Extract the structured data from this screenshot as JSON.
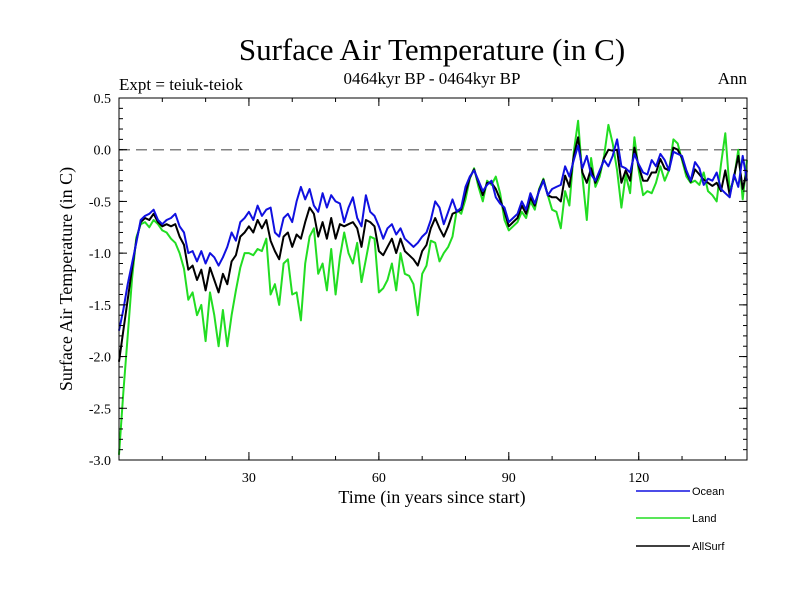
{
  "chart_data": {
    "type": "line",
    "title": "Surface Air Temperature (in C)",
    "subtitle": "0464kyr BP - 0464kyr BP",
    "left_label": "Expt = teiuk-teiok",
    "right_label": "Ann",
    "xlabel": "Time (in years since start)",
    "ylabel": "Surface Air Temperature (in C)",
    "xlim": [
      0,
      145
    ],
    "ylim": [
      -3.0,
      0.5
    ],
    "xticks": [
      30,
      60,
      90,
      120
    ],
    "yticks": [
      0.5,
      0.0,
      -0.5,
      -1.0,
      -1.5,
      -2.0,
      -2.5,
      -3.0
    ],
    "ytick_labels": [
      "0.5",
      "0.0",
      "-0.5",
      "-1.0",
      "-1.5",
      "-2.0",
      "-2.5",
      "-3.0"
    ],
    "reference_line": 0.0,
    "legend_position": "bottom-right",
    "x": [
      0,
      1,
      2,
      3,
      4,
      5,
      6,
      7,
      8,
      9,
      10,
      11,
      12,
      13,
      14,
      15,
      16,
      17,
      18,
      19,
      20,
      21,
      22,
      23,
      24,
      25,
      26,
      27,
      28,
      29,
      30,
      31,
      32,
      33,
      34,
      35,
      36,
      37,
      38,
      39,
      40,
      41,
      42,
      43,
      44,
      45,
      46,
      47,
      48,
      49,
      50,
      51,
      52,
      53,
      54,
      55,
      56,
      57,
      58,
      59,
      60,
      61,
      62,
      63,
      64,
      65,
      66,
      67,
      68,
      69,
      70,
      71,
      72,
      73,
      74,
      75,
      76,
      77,
      78,
      79,
      80,
      81,
      82,
      83,
      84,
      85,
      86,
      87,
      88,
      89,
      90,
      91,
      92,
      93,
      94,
      95,
      96,
      97,
      98,
      99,
      100,
      101,
      102,
      103,
      104,
      105,
      106,
      107,
      108,
      109,
      110,
      111,
      112,
      113,
      114,
      115,
      116,
      117,
      118,
      119,
      120,
      121,
      122,
      123,
      124,
      125,
      126,
      127,
      128,
      129,
      130,
      131,
      132,
      133,
      134,
      135,
      136,
      137,
      138,
      139,
      140,
      141,
      142,
      143,
      144,
      145
    ],
    "series": [
      {
        "name": "Ocean",
        "color": "#1010e0",
        "values": [
          -1.75,
          -1.55,
          -1.3,
          -1.1,
          -0.9,
          -0.68,
          -0.64,
          -0.62,
          -0.58,
          -0.68,
          -0.72,
          -0.68,
          -0.66,
          -0.62,
          -0.74,
          -0.8,
          -1.0,
          -0.98,
          -1.08,
          -0.98,
          -1.1,
          -1.0,
          -1.04,
          -1.12,
          -1.04,
          -0.94,
          -0.8,
          -0.88,
          -0.7,
          -0.66,
          -0.6,
          -0.68,
          -0.54,
          -0.64,
          -0.58,
          -0.56,
          -0.8,
          -0.84,
          -0.66,
          -0.62,
          -0.7,
          -0.5,
          -0.36,
          -0.48,
          -0.38,
          -0.54,
          -0.6,
          -0.42,
          -0.56,
          -0.44,
          -0.5,
          -0.52,
          -0.7,
          -0.56,
          -0.46,
          -0.66,
          -0.74,
          -0.44,
          -0.6,
          -0.64,
          -0.74,
          -0.86,
          -0.76,
          -0.72,
          -0.82,
          -0.76,
          -0.86,
          -0.9,
          -0.94,
          -0.9,
          -0.84,
          -0.8,
          -0.68,
          -0.5,
          -0.56,
          -0.72,
          -0.6,
          -0.48,
          -0.6,
          -0.56,
          -0.36,
          -0.26,
          -0.2,
          -0.3,
          -0.4,
          -0.34,
          -0.3,
          -0.46,
          -0.52,
          -0.56,
          -0.7,
          -0.66,
          -0.62,
          -0.5,
          -0.58,
          -0.42,
          -0.52,
          -0.4,
          -0.3,
          -0.44,
          -0.38,
          -0.36,
          -0.34,
          -0.16,
          -0.26,
          -0.1,
          0.04,
          -0.18,
          -0.06,
          -0.24,
          -0.3,
          -0.2,
          -0.1,
          -0.16,
          -0.06,
          0.1,
          -0.16,
          -0.18,
          -0.22,
          -0.04,
          -0.14,
          -0.22,
          -0.24,
          -0.1,
          -0.16,
          -0.04,
          -0.1,
          -0.2,
          -0.02,
          -0.04,
          -0.06,
          -0.2,
          -0.3,
          -0.12,
          -0.18,
          -0.34,
          -0.28,
          -0.3,
          -0.22,
          -0.38,
          -0.42,
          -0.46,
          -0.24,
          -0.36,
          -0.06,
          -0.3
        ]
      },
      {
        "name": "Land",
        "color": "#22dd22",
        "values": [
          -2.95,
          -2.35,
          -1.8,
          -1.25,
          -0.85,
          -0.72,
          -0.7,
          -0.75,
          -0.68,
          -0.72,
          -0.78,
          -0.8,
          -0.86,
          -0.9,
          -1.0,
          -1.15,
          -1.45,
          -1.38,
          -1.6,
          -1.5,
          -1.85,
          -1.38,
          -1.6,
          -1.9,
          -1.55,
          -1.9,
          -1.6,
          -1.36,
          -1.14,
          -1.0,
          -1.0,
          -1.02,
          -0.96,
          -0.98,
          -0.86,
          -1.4,
          -1.3,
          -1.5,
          -1.1,
          -1.06,
          -1.4,
          -1.38,
          -1.65,
          -1.1,
          -0.84,
          -0.76,
          -1.2,
          -1.1,
          -1.36,
          -0.96,
          -1.4,
          -1.04,
          -0.8,
          -1.0,
          -1.1,
          -0.9,
          -1.28,
          -1.06,
          -0.84,
          -0.86,
          -1.38,
          -1.34,
          -1.26,
          -1.1,
          -1.36,
          -1.0,
          -1.2,
          -1.22,
          -1.3,
          -1.6,
          -1.2,
          -1.12,
          -0.88,
          -0.9,
          -1.08,
          -1.0,
          -0.94,
          -0.84,
          -0.58,
          -0.62,
          -0.48,
          -0.28,
          -0.18,
          -0.36,
          -0.5,
          -0.3,
          -0.34,
          -0.26,
          -0.42,
          -0.68,
          -0.78,
          -0.74,
          -0.7,
          -0.6,
          -0.66,
          -0.5,
          -0.58,
          -0.38,
          -0.28,
          -0.44,
          -0.58,
          -0.6,
          -0.76,
          -0.4,
          -0.54,
          -0.02,
          0.28,
          -0.26,
          -0.68,
          -0.08,
          -0.36,
          -0.26,
          -0.06,
          0.24,
          0.06,
          -0.2,
          -0.56,
          -0.24,
          -0.42,
          0.12,
          -0.2,
          -0.44,
          -0.4,
          -0.42,
          -0.32,
          -0.16,
          -0.3,
          -0.2,
          0.1,
          0.06,
          -0.1,
          -0.26,
          -0.32,
          -0.3,
          -0.34,
          -0.22,
          -0.4,
          -0.44,
          -0.5,
          -0.14,
          0.16,
          -0.4,
          -0.28,
          0.0,
          -0.48,
          -0.1
        ]
      },
      {
        "name": "AllSurf",
        "color": "#000000",
        "values": [
          -2.05,
          -1.75,
          -1.45,
          -1.15,
          -0.88,
          -0.7,
          -0.66,
          -0.68,
          -0.62,
          -0.7,
          -0.74,
          -0.72,
          -0.74,
          -0.72,
          -0.84,
          -0.92,
          -1.16,
          -1.12,
          -1.26,
          -1.16,
          -1.36,
          -1.14,
          -1.26,
          -1.38,
          -1.2,
          -1.3,
          -1.08,
          -1.02,
          -0.84,
          -0.8,
          -0.74,
          -0.8,
          -0.68,
          -0.76,
          -0.68,
          -0.88,
          -0.98,
          -1.06,
          -0.84,
          -0.8,
          -0.94,
          -0.82,
          -0.86,
          -0.7,
          -0.56,
          -0.62,
          -0.84,
          -0.7,
          -0.86,
          -0.66,
          -0.86,
          -0.72,
          -0.74,
          -0.72,
          -0.7,
          -0.76,
          -0.94,
          -0.68,
          -0.7,
          -0.74,
          -0.98,
          -1.02,
          -0.94,
          -0.86,
          -1.0,
          -0.86,
          -0.98,
          -1.02,
          -1.06,
          -1.12,
          -0.98,
          -0.92,
          -0.76,
          -0.66,
          -0.76,
          -0.84,
          -0.74,
          -0.62,
          -0.6,
          -0.58,
          -0.42,
          -0.27,
          -0.19,
          -0.32,
          -0.44,
          -0.32,
          -0.32,
          -0.38,
          -0.48,
          -0.6,
          -0.74,
          -0.7,
          -0.66,
          -0.54,
          -0.62,
          -0.46,
          -0.54,
          -0.39,
          -0.29,
          -0.44,
          -0.46,
          -0.46,
          -0.5,
          -0.25,
          -0.36,
          -0.06,
          0.12,
          -0.22,
          -0.32,
          -0.18,
          -0.32,
          -0.22,
          -0.08,
          0.0,
          -0.01,
          0.0,
          -0.32,
          -0.2,
          -0.3,
          0.02,
          -0.16,
          -0.3,
          -0.3,
          -0.22,
          -0.22,
          -0.09,
          -0.18,
          -0.2,
          0.02,
          0.0,
          -0.08,
          -0.22,
          -0.31,
          -0.19,
          -0.24,
          -0.29,
          -0.32,
          -0.35,
          -0.32,
          -0.4,
          -0.2,
          -0.44,
          -0.26,
          -0.06,
          -0.38,
          -0.2
        ]
      }
    ]
  }
}
